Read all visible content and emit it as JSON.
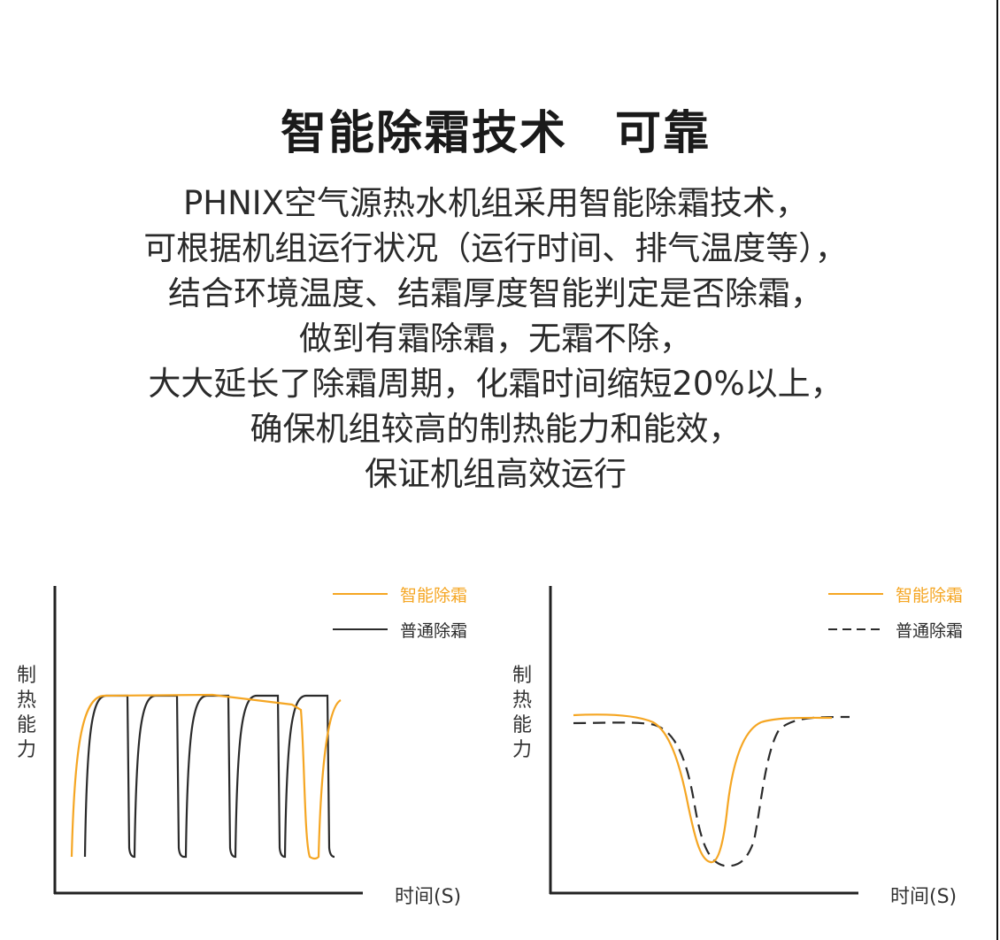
{
  "header": {
    "title": "智能除霜技术　可靠",
    "lines": [
      "PHNIX空气源热水机组采用智能除霜技术，",
      "可根据机组运行状况（运行时间、排气温度等），",
      "结合环境温度、结霜厚度智能判定是否除霜，",
      "做到有霜除霜，无霜不除，",
      "大大延长了除霜周期，化霜时间缩短20%以上，",
      "确保机组较高的制热能力和能效，",
      "保证机组高效运行"
    ]
  },
  "colors": {
    "smart": "#f5a623",
    "normal": "#2b2b2b",
    "axis": "#222222"
  },
  "chart_data": [
    {
      "type": "line",
      "xlabel": "时间(S)",
      "ylabel": "制热能力",
      "legend_position": "top-right",
      "series": [
        {
          "name": "智能除霜",
          "color": "#f5a623",
          "style": "solid",
          "pattern": "one long heating cycle, then one defrost dip near the end"
        },
        {
          "name": "普通除霜",
          "color": "#2b2b2b",
          "style": "solid",
          "pattern": "five short heating cycles with frequent defrost dips"
        }
      ]
    },
    {
      "type": "line",
      "xlabel": "时间(S)",
      "ylabel": "制热能力",
      "legend_position": "top-right",
      "series": [
        {
          "name": "智能除霜",
          "color": "#f5a623",
          "style": "solid",
          "pattern": "shorter defrost dip with faster recovery"
        },
        {
          "name": "普通除霜",
          "color": "#2b2b2b",
          "style": "dashed",
          "pattern": "wider defrost dip with slower recovery"
        }
      ]
    }
  ]
}
